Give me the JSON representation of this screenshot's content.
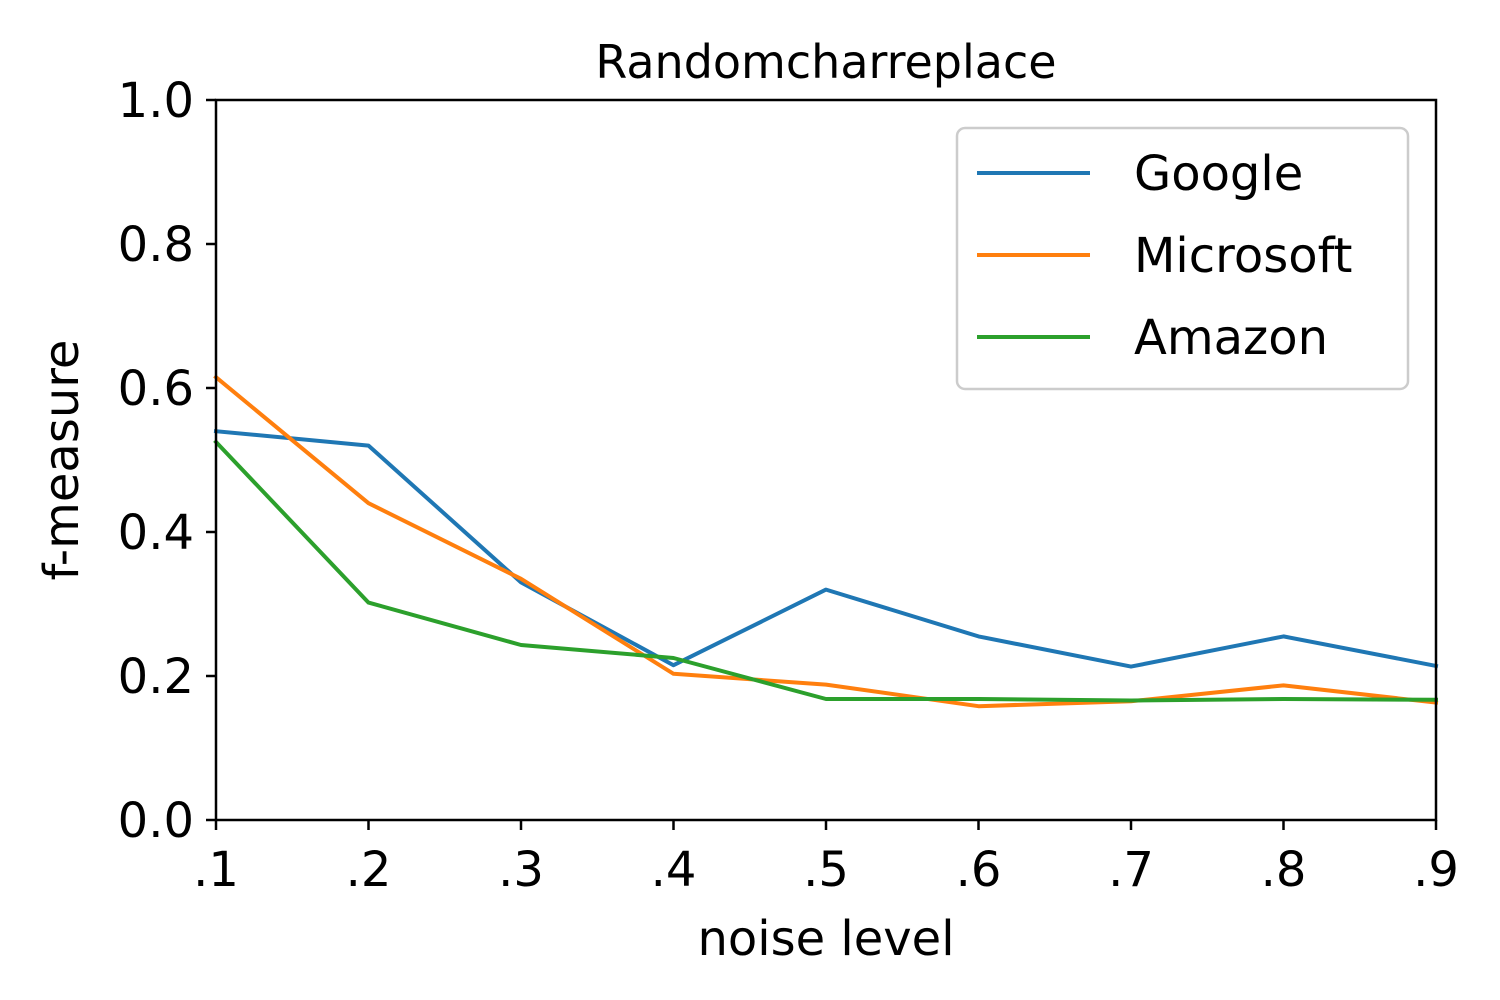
{
  "chart_data": {
    "type": "line",
    "title": "Randomcharreplace",
    "xlabel": "noise level",
    "ylabel": "f-measure",
    "x": [
      0.1,
      0.2,
      0.3,
      0.4,
      0.5,
      0.6,
      0.7,
      0.8,
      0.9
    ],
    "x_tick_labels": [
      ".1",
      ".2",
      ".3",
      ".4",
      ".5",
      ".6",
      ".7",
      ".8",
      ".9"
    ],
    "xlim": [
      0.1,
      0.9
    ],
    "ylim": [
      0.0,
      1.0
    ],
    "y_ticks": [
      0.0,
      0.2,
      0.4,
      0.6,
      0.8,
      1.0
    ],
    "y_tick_labels": [
      "0.0",
      "0.2",
      "0.4",
      "0.6",
      "0.8",
      "1.0"
    ],
    "grid": false,
    "legend_position": "top-right",
    "series": [
      {
        "name": "Google",
        "color": "#1f77b4",
        "values": [
          0.54,
          0.52,
          0.33,
          0.215,
          0.32,
          0.255,
          0.213,
          0.255,
          0.214
        ]
      },
      {
        "name": "Microsoft",
        "color": "#ff7f0e",
        "values": [
          0.615,
          0.44,
          0.335,
          0.203,
          0.188,
          0.158,
          0.165,
          0.187,
          0.163
        ]
      },
      {
        "name": "Amazon",
        "color": "#2ca02c",
        "values": [
          0.525,
          0.302,
          0.243,
          0.225,
          0.168,
          0.168,
          0.166,
          0.168,
          0.167
        ]
      }
    ]
  }
}
